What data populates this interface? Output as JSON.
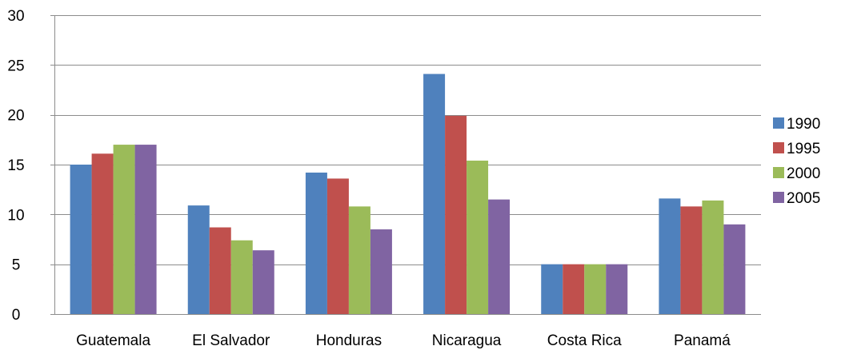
{
  "chart_data": {
    "type": "bar",
    "title": "",
    "xlabel": "",
    "ylabel": "",
    "ylim": [
      0,
      30
    ],
    "yticks": [
      0,
      5,
      10,
      15,
      20,
      25,
      30
    ],
    "grid": "horizontal",
    "legend_position": "right",
    "categories": [
      "Guatemala",
      "El Salvador",
      "Honduras",
      "Nicaragua",
      "Costa Rica",
      "Panamá"
    ],
    "series": [
      {
        "name": "1990",
        "color": "#4f81bd",
        "values": [
          15.0,
          10.9,
          14.2,
          24.1,
          5.0,
          11.6
        ]
      },
      {
        "name": "1995",
        "color": "#c0504d",
        "values": [
          16.1,
          8.7,
          13.6,
          19.9,
          5.0,
          10.8
        ]
      },
      {
        "name": "2000",
        "color": "#9bbb59",
        "values": [
          17.0,
          7.4,
          10.8,
          15.4,
          5.0,
          11.4
        ]
      },
      {
        "name": "2005",
        "color": "#8064a2",
        "values": [
          17.0,
          6.4,
          8.5,
          11.5,
          5.0,
          9.0
        ]
      }
    ]
  }
}
